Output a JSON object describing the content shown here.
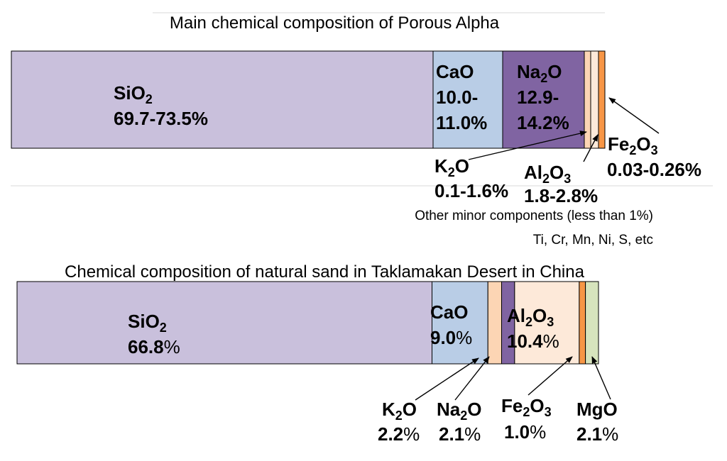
{
  "chart_data": [
    {
      "type": "stacked-bar",
      "title": "Main chemical composition of Porous Alpha",
      "segments": [
        {
          "formula": "SiO2",
          "value_text": "69.7-73.5%",
          "mid": 71.6,
          "color": "#c9c0dc"
        },
        {
          "formula": "CaO",
          "value_text": "10.0-11.0%",
          "mid": 10.5,
          "color": "#b9cde6"
        },
        {
          "formula": "Na2O",
          "value_text": "12.9-14.2%",
          "mid": 13.55,
          "color": "#8064a2"
        },
        {
          "formula": "K2O",
          "value_text": "0.1-1.6%",
          "mid": 0.85,
          "color": "#fcd5b4"
        },
        {
          "formula": "Al2O3",
          "value_text": "1.8-2.8%",
          "mid": 2.3,
          "color": "#fde9d9"
        },
        {
          "formula": "Fe2O3",
          "value_text": "0.03-0.26%",
          "mid": 0.15,
          "color": "#f79646"
        }
      ],
      "notes": [
        "Other minor components (less than 1%)",
        "Ti, Cr, Mn, Ni, S, etc"
      ]
    },
    {
      "type": "stacked-bar",
      "title": "Chemical composition of natural sand in Taklamakan Desert in China",
      "segments": [
        {
          "formula": "SiO2",
          "value_text": "66.8%",
          "value": 66.8,
          "color": "#c9c0dc"
        },
        {
          "formula": "CaO",
          "value_text": "9.0%",
          "value": 9.0,
          "color": "#b9cde6"
        },
        {
          "formula": "K2O",
          "value_text": "2.2%",
          "value": 2.2,
          "color": "#fcd5b4"
        },
        {
          "formula": "Na2O",
          "value_text": "2.1%",
          "value": 2.1,
          "color": "#8064a2"
        },
        {
          "formula": "Al2O3",
          "value_text": "10.4%",
          "value": 10.4,
          "color": "#fde9d9"
        },
        {
          "formula": "Fe2O3",
          "value_text": "1.0%",
          "value": 1.0,
          "color": "#f79646"
        },
        {
          "formula": "MgO",
          "value_text": "2.1%",
          "value": 2.1,
          "color": "#d7e4bd"
        }
      ]
    }
  ]
}
